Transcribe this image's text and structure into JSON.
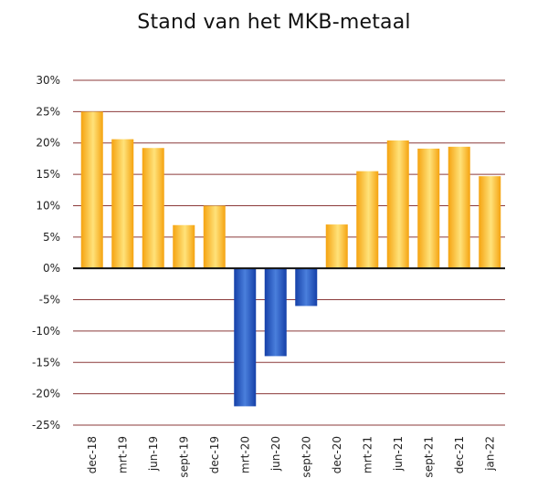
{
  "chart_data": {
    "type": "bar",
    "title": "Stand van het MKB-metaal",
    "xlabel": "",
    "ylabel": "",
    "ylim": [
      -25,
      30
    ],
    "yticks": [
      30,
      25,
      20,
      15,
      10,
      5,
      0,
      -5,
      -10,
      -15,
      -20,
      -25
    ],
    "ytick_labels": [
      "30%",
      "25%",
      "20%",
      "15%",
      "10%",
      "5%",
      "0%",
      "-5%",
      "-10%",
      "-15%",
      "-20%",
      "-25%"
    ],
    "grid": true,
    "categories": [
      "dec-18",
      "mrt-19",
      "jun-19",
      "sept-19",
      "dec-19",
      "mrt-20",
      "jun-20",
      "sept-20",
      "dec-20",
      "mrt-21",
      "jun-21",
      "sept-21",
      "dec-21",
      "jan-22"
    ],
    "values": [
      25,
      20.6,
      19.2,
      6.9,
      10,
      -22,
      -14,
      -6,
      7,
      15.5,
      20.4,
      19.1,
      19.4,
      14.7
    ],
    "colors": {
      "positive": "#f5a310",
      "positive_light": "#ffe27a",
      "negative": "#1540a8",
      "negative_light": "#4a7fdc",
      "grid": "#8b3a3a",
      "zero_line": "#111111"
    }
  }
}
